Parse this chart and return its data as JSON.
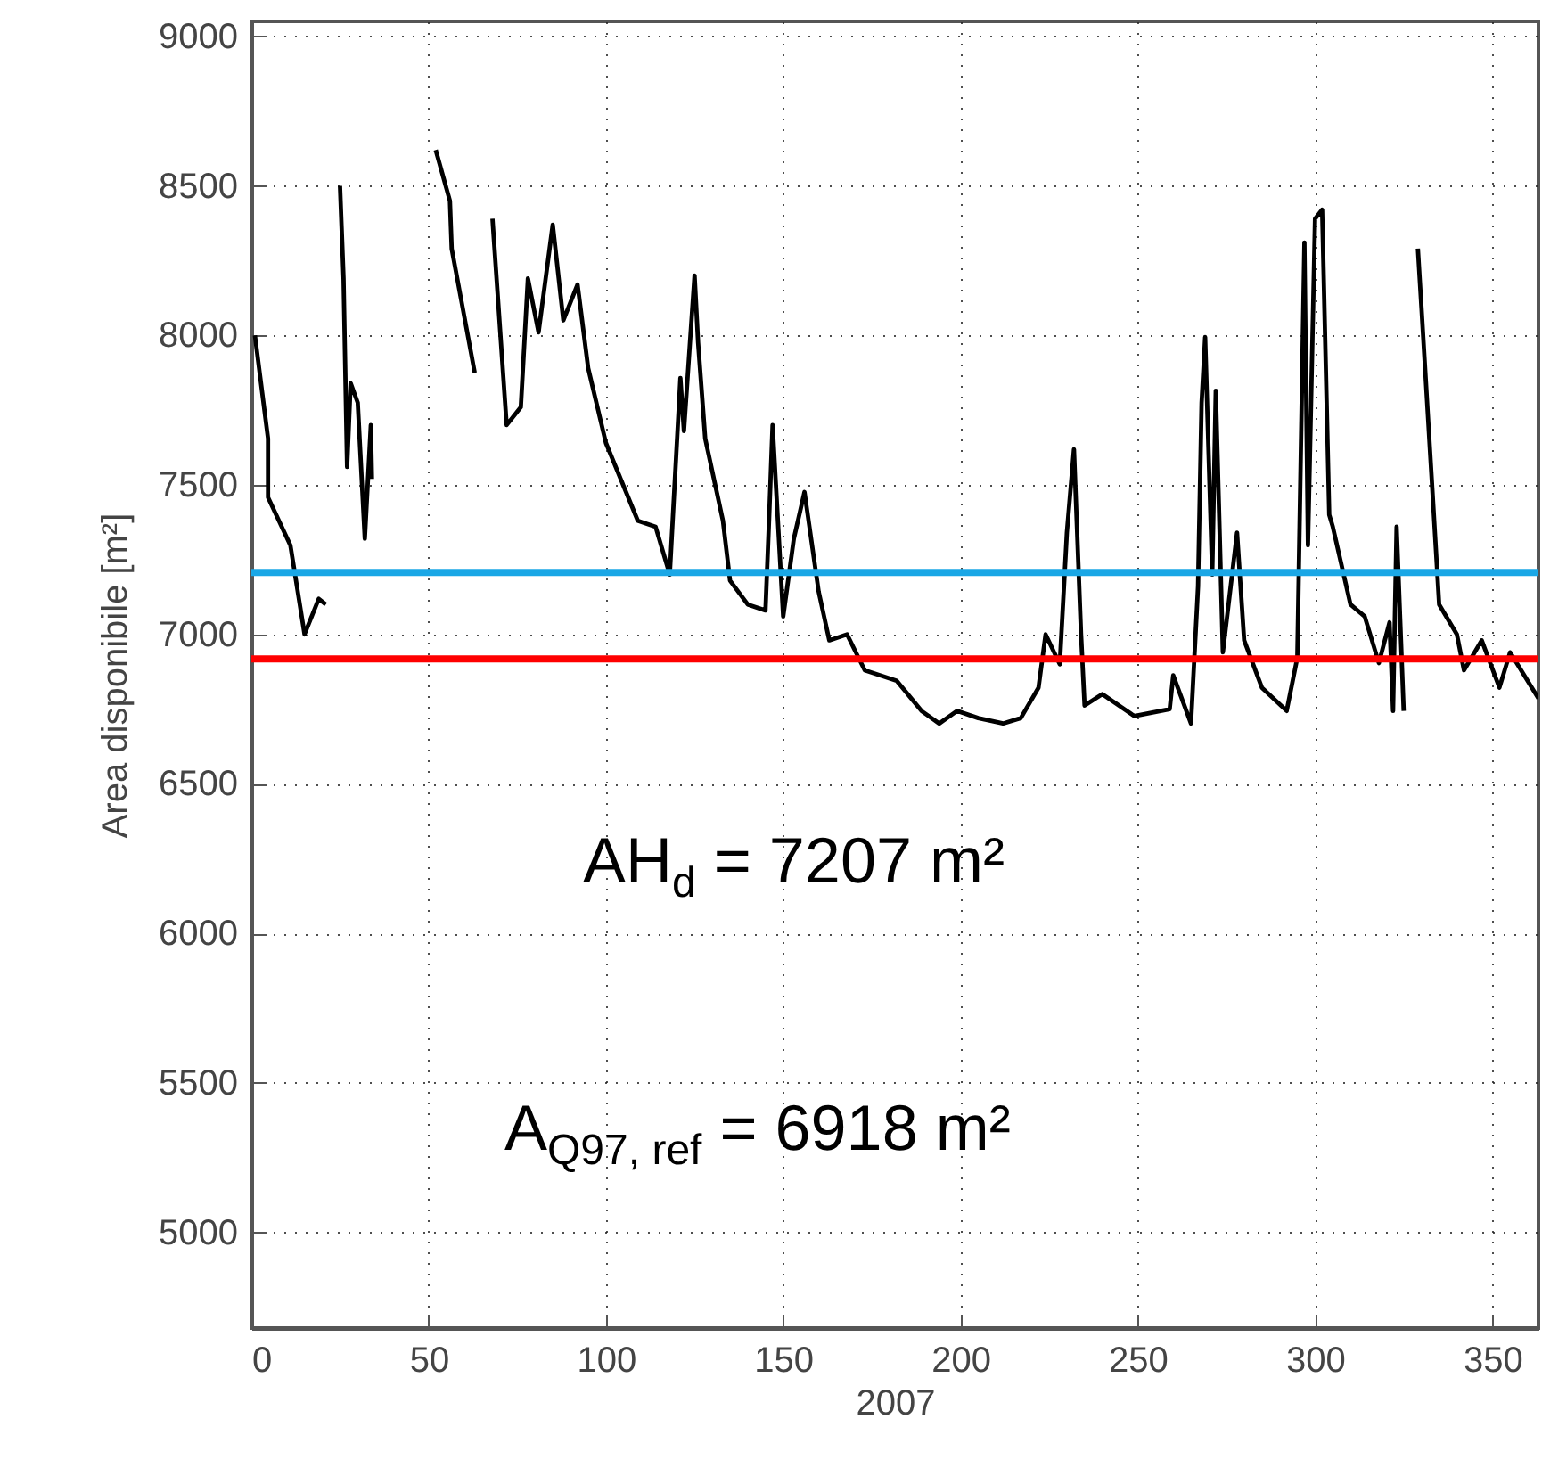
{
  "chart_data": {
    "type": "line",
    "xlabel": "2007",
    "ylabel": "Area disponibile [m²]",
    "x": [
      1,
      4.7,
      4.7,
      11,
      15,
      19,
      21,
      22,
      25,
      26,
      27,
      28,
      30,
      32,
      33.7,
      34,
      35,
      52,
      56,
      56.5,
      63,
      65,
      68,
      72,
      76,
      78,
      81,
      85,
      88,
      92,
      95,
      100,
      109,
      114,
      118,
      121,
      122,
      125,
      126,
      128,
      133,
      135,
      140,
      145,
      146,
      147,
      150,
      153,
      156,
      160,
      163,
      168,
      173,
      182,
      189,
      194,
      199,
      205,
      212,
      217,
      222,
      224,
      228,
      230,
      232,
      234,
      235,
      240,
      249,
      259,
      260,
      265,
      267,
      268,
      269,
      271,
      272,
      274,
      278,
      280,
      285,
      292,
      295,
      297,
      298,
      300,
      302,
      304,
      305,
      310,
      314,
      318,
      321,
      322,
      323,
      325,
      326,
      329,
      330,
      333,
      335,
      340,
      342,
      347,
      352,
      355,
      363
    ],
    "series": [
      {
        "color": "#000000",
        "values": [
          8000,
          7655,
          7458,
          7298,
          7000,
          7119,
          7100,
          null,
          8500,
          8190,
          7560,
          7840,
          7775,
          7320,
          7700,
          7520,
          null,
          8620,
          8450,
          8290,
          7875,
          null,
          8390,
          7700,
          7760,
          8190,
          8010,
          8370,
          8050,
          8170,
          7890,
          7640,
          7380,
          7360,
          7200,
          7857,
          7680,
          8200,
          7976,
          7655,
          7380,
          7180,
          7100,
          7080,
          7380,
          7700,
          7060,
          7320,
          7476,
          7143,
          6980,
          7000,
          6880,
          6845,
          6744,
          6702,
          6744,
          6720,
          6702,
          6720,
          6822,
          7000,
          6900,
          7340,
          7619,
          7000,
          6762,
          6800,
          6727,
          6750,
          6863,
          6702,
          7161,
          7774,
          7994,
          7200,
          7815,
          6940,
          7340,
          6980,
          6822,
          6744,
          6922,
          8310,
          7298,
          8390,
          8420,
          7400,
          7360,
          7100,
          7060,
          6904,
          7040,
          6744,
          7360,
          6744,
          null,
          8290,
          8095,
          7500,
          7100,
          7000,
          6880,
          6980,
          6822,
          6940,
          6786
        ]
      }
    ],
    "xlim": [
      0,
      363
    ],
    "xticks": [
      0,
      50,
      100,
      150,
      200,
      250,
      300,
      350
    ],
    "ylim": [
      4680,
      9050
    ],
    "yticks": [
      5000,
      5500,
      6000,
      6500,
      7000,
      7500,
      8000,
      8500,
      9000
    ],
    "grid": true,
    "line_style": "solid",
    "marker": "none",
    "ref_lines": [
      {
        "axis": "y",
        "value": 7207,
        "color": "#1aa7e6"
      },
      {
        "axis": "y",
        "value": 6918,
        "color": "#ff0000"
      }
    ],
    "annotations": [
      "AH$_{d}$ = 7207 m²",
      "A$_{Q97, ref}$ = 6918 m²"
    ]
  }
}
